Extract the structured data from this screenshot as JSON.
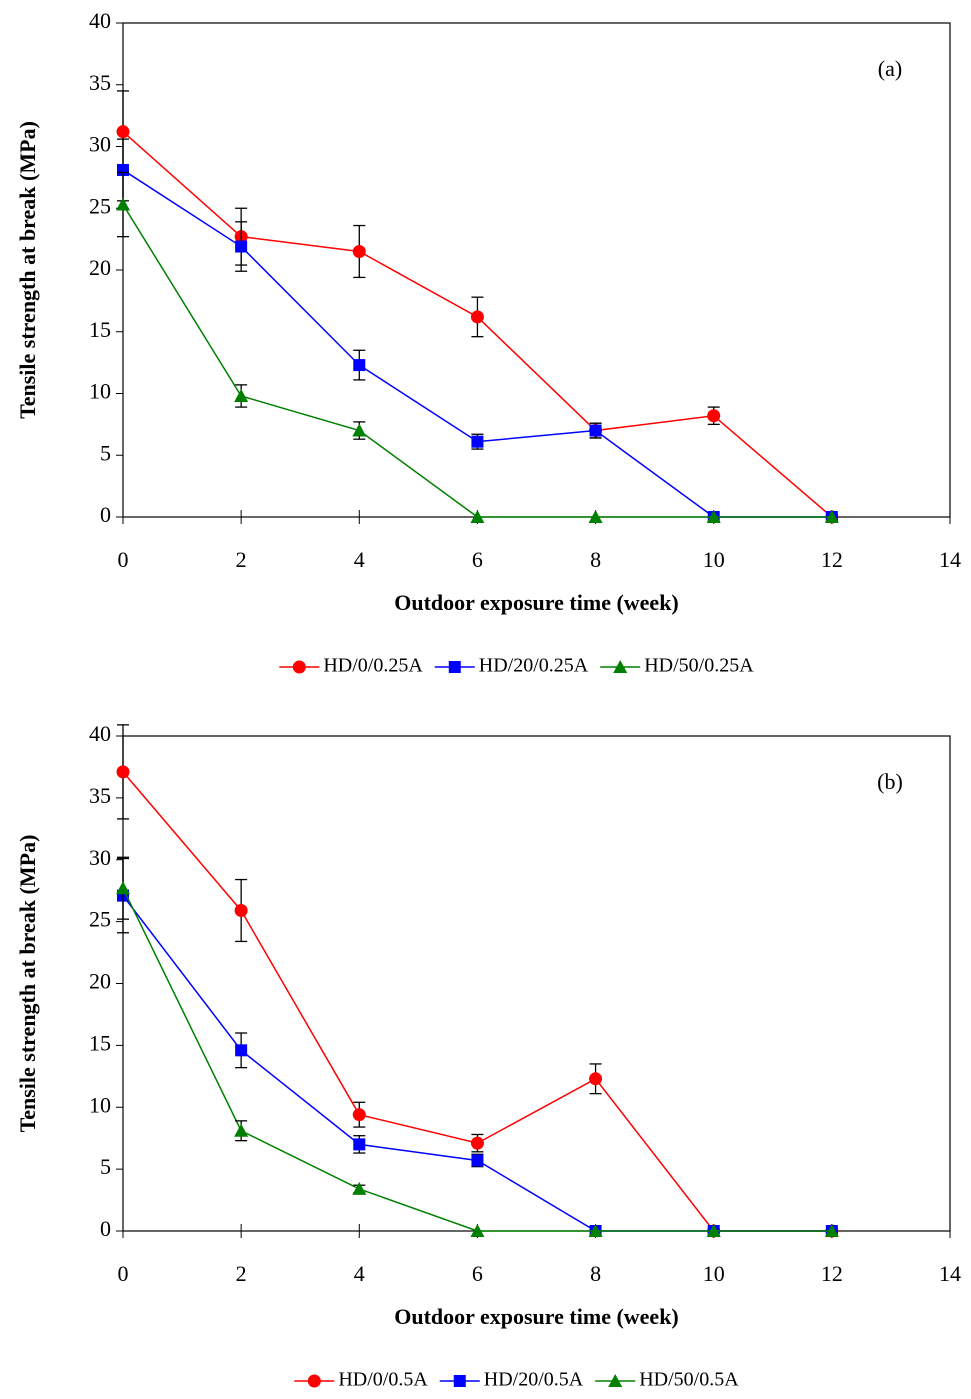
{
  "chart_data": [
    {
      "type": "line",
      "panel_label": "(a)",
      "xlabel": "Outdoor exposure time (week)",
      "ylabel": "Tensile strength at break (MPa)",
      "x": [
        0,
        2,
        4,
        6,
        8,
        10,
        12
      ],
      "xlim": [
        0,
        14
      ],
      "xticks": [
        0,
        2,
        4,
        6,
        8,
        10,
        12,
        14
      ],
      "ylim": [
        0,
        40
      ],
      "yticks": [
        0,
        5,
        10,
        15,
        20,
        25,
        30,
        35,
        40
      ],
      "grid": false,
      "legend": "bottom",
      "series": [
        {
          "name": "HD/0/0.25A",
          "color": "#ff0000",
          "marker": "circle",
          "values": [
            31.2,
            22.7,
            21.5,
            16.2,
            7.0,
            8.2,
            0
          ],
          "errors": [
            3.3,
            2.3,
            2.1,
            1.6,
            0.6,
            0.7,
            0
          ]
        },
        {
          "name": "HD/20/0.25A",
          "color": "#0000ff",
          "marker": "square",
          "values": [
            28.1,
            21.9,
            12.3,
            6.1,
            7.0,
            0,
            0
          ],
          "errors": [
            2.5,
            2.0,
            1.2,
            0.6,
            0.6,
            0,
            0
          ]
        },
        {
          "name": "HD/50/0.25A",
          "color": "#008000",
          "marker": "triangle",
          "values": [
            25.3,
            9.8,
            7.0,
            0,
            0,
            0,
            0
          ],
          "errors": [
            2.6,
            0.9,
            0.7,
            0,
            0,
            0,
            0
          ]
        }
      ]
    },
    {
      "type": "line",
      "panel_label": "(b)",
      "xlabel": "Outdoor exposure time (week)",
      "ylabel": "Tensile strength at break (MPa)",
      "x": [
        0,
        2,
        4,
        6,
        8,
        10,
        12
      ],
      "xlim": [
        0,
        14
      ],
      "xticks": [
        0,
        2,
        4,
        6,
        8,
        10,
        12,
        14
      ],
      "ylim": [
        0,
        40
      ],
      "yticks": [
        0,
        5,
        10,
        15,
        20,
        25,
        30,
        35,
        40
      ],
      "grid": false,
      "legend": "bottom",
      "series": [
        {
          "name": "HD/0/0.5A",
          "color": "#ff0000",
          "marker": "circle",
          "values": [
            37.1,
            25.9,
            9.4,
            7.1,
            12.3,
            0,
            0
          ],
          "errors": [
            3.8,
            2.5,
            1.0,
            0.7,
            1.2,
            0,
            0
          ]
        },
        {
          "name": "HD/20/0.5A",
          "color": "#0000ff",
          "marker": "square",
          "values": [
            27.1,
            14.6,
            7.0,
            5.7,
            0,
            0,
            0
          ],
          "errors": [
            3.0,
            1.4,
            0.7,
            0.5,
            0,
            0,
            0
          ]
        },
        {
          "name": "HD/50/0.5A",
          "color": "#008000",
          "marker": "triangle",
          "values": [
            27.7,
            8.1,
            3.4,
            0,
            0,
            0,
            0
          ],
          "errors": [
            2.5,
            0.8,
            0.3,
            0,
            0,
            0,
            0
          ]
        }
      ]
    }
  ]
}
